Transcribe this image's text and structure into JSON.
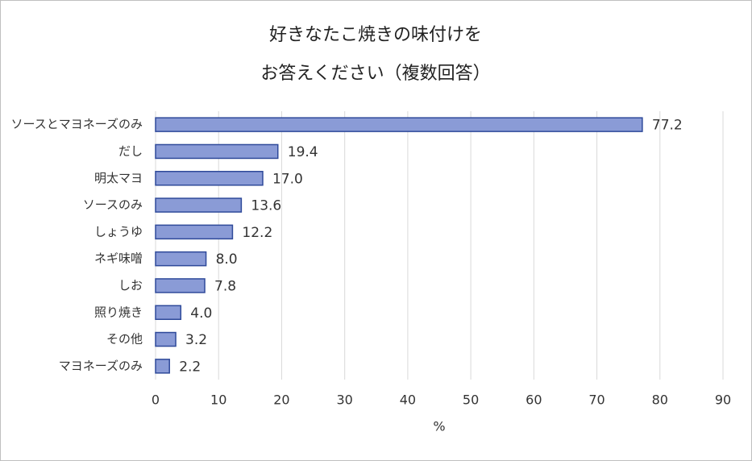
{
  "chart_data": {
    "type": "barh",
    "title": [
      "好きなたこ焼きの味付けを",
      "お答えください（複数回答）"
    ],
    "categories": [
      "ソースとマヨネーズのみ",
      "だし",
      "明太マヨ",
      "ソースのみ",
      "しょうゆ",
      "ネギ味噌",
      "しお",
      "照り焼き",
      "その他",
      "マヨネーズのみ"
    ],
    "values": [
      77.2,
      19.4,
      17.0,
      13.6,
      12.2,
      8.0,
      7.8,
      4.0,
      3.2,
      2.2
    ],
    "value_labels": [
      "77.2",
      "19.4",
      "17.0",
      "13.6",
      "12.2",
      "8.0",
      "7.8",
      "4.0",
      "3.2",
      "2.2"
    ],
    "color": "#8a9bd6",
    "edge_color": "#2f4a9a",
    "xlim": [
      0,
      90
    ],
    "xticks": [
      0,
      10,
      20,
      30,
      40,
      50,
      60,
      70,
      80,
      90
    ],
    "xlabel": "%",
    "grid": true
  }
}
